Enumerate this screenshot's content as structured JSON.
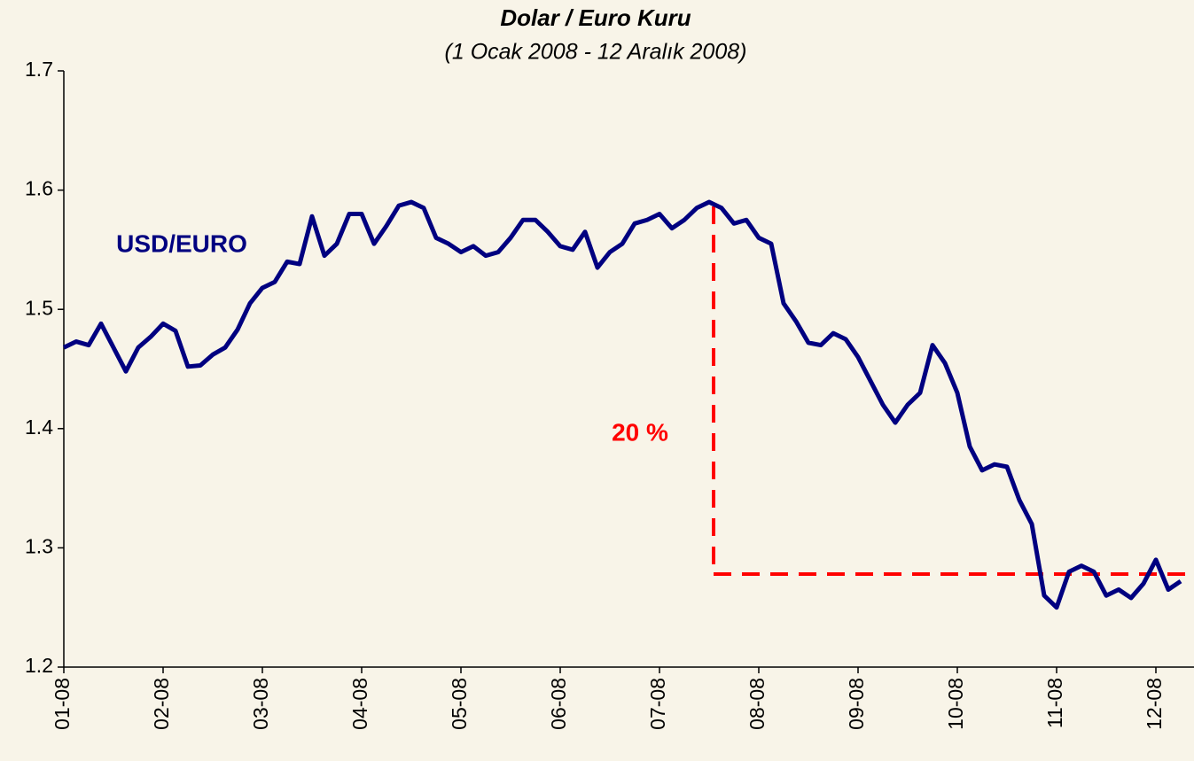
{
  "chart_data": {
    "type": "line",
    "title": "Dolar / Euro Kuru",
    "subtitle": "(1 Ocak 2008 - 12 Aralık 2008)",
    "annotations": [
      "USD/EURO",
      "20 %"
    ],
    "categories": [
      "01-08",
      null,
      null,
      null,
      null,
      null,
      null,
      null,
      "02-08",
      null,
      null,
      null,
      null,
      null,
      null,
      null,
      "03-08",
      null,
      null,
      null,
      null,
      null,
      null,
      null,
      "04-08",
      null,
      null,
      null,
      null,
      null,
      null,
      null,
      "05-08",
      null,
      null,
      null,
      null,
      null,
      null,
      null,
      "06-08",
      null,
      null,
      null,
      null,
      null,
      null,
      null,
      "07-08",
      null,
      null,
      null,
      null,
      null,
      null,
      null,
      "08-08",
      null,
      null,
      null,
      null,
      null,
      null,
      null,
      "09-08",
      null,
      null,
      null,
      null,
      null,
      null,
      null,
      "10-08",
      null,
      null,
      null,
      null,
      null,
      null,
      null,
      "11-08",
      null,
      null,
      null,
      null,
      null,
      null,
      null,
      "12-08",
      null,
      null
    ],
    "series": [
      {
        "name": "USD/EURO",
        "color": "#000080",
        "values": [
          1.468,
          1.473,
          1.47,
          1.488,
          1.468,
          1.448,
          1.468,
          1.477,
          1.488,
          1.482,
          1.452,
          1.453,
          1.462,
          1.468,
          1.483,
          1.505,
          1.518,
          1.523,
          1.54,
          1.538,
          1.578,
          1.545,
          1.555,
          1.58,
          1.58,
          1.555,
          1.57,
          1.587,
          1.59,
          1.585,
          1.56,
          1.555,
          1.548,
          1.553,
          1.545,
          1.548,
          1.56,
          1.575,
          1.575,
          1.565,
          1.553,
          1.55,
          1.565,
          1.535,
          1.548,
          1.555,
          1.572,
          1.575,
          1.58,
          1.568,
          1.575,
          1.585,
          1.59,
          1.585,
          1.572,
          1.575,
          1.56,
          1.555,
          1.505,
          1.49,
          1.472,
          1.47,
          1.48,
          1.475,
          1.46,
          1.44,
          1.42,
          1.405,
          1.42,
          1.43,
          1.47,
          1.455,
          1.43,
          1.385,
          1.365,
          1.37,
          1.368,
          1.34,
          1.32,
          1.26,
          1.25,
          1.28,
          1.285,
          1.28,
          1.26,
          1.265,
          1.258,
          1.27,
          1.29,
          1.265,
          1.272
        ]
      }
    ],
    "ylim": [
      1.2,
      1.7
    ],
    "yticks": [
      1.2,
      1.3,
      1.4,
      1.5,
      1.6,
      1.7
    ]
  }
}
